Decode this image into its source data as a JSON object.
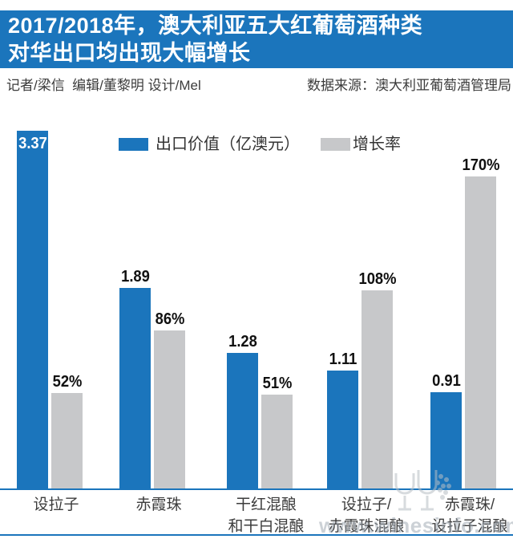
{
  "header": {
    "title_line1": "2017/2018年，澳大利亚五大红葡萄酒种类",
    "title_line2": "对华出口均出现大幅增长",
    "bg_color": "#1b75bc",
    "credits_left": "记者/梁信  编辑/董黎明 设计/Mel",
    "credits_right": "数据来源：澳大利亚葡萄酒管理局"
  },
  "watermark": {
    "text": "www.winesinfo.com",
    "logo": "wine-glasses-grapes-logo"
  },
  "chart_data": {
    "type": "bar",
    "title": "",
    "categories": [
      "设拉子",
      "赤霞珠",
      "干红混酿和干白混酿",
      "设拉子/赤霞珠混酿",
      "赤霞珠/设拉子混酿"
    ],
    "category_lines": [
      [
        "设拉子"
      ],
      [
        "赤霞珠"
      ],
      [
        "干红混酿",
        "和干白混酿"
      ],
      [
        "设拉子/",
        "赤霞珠混酿"
      ],
      [
        "赤霞珠/",
        "设拉子混酿"
      ]
    ],
    "series": [
      {
        "name": "出口价值（亿澳元）",
        "color": "#1b75bc",
        "values": [
          3.37,
          1.89,
          1.28,
          1.11,
          0.91
        ],
        "labels": [
          "3.37",
          "1.89",
          "1.28",
          "1.11",
          "0.91"
        ]
      },
      {
        "name": "增长率",
        "color": "#c7c8ca",
        "values": [
          52,
          86,
          51,
          108,
          170
        ],
        "labels": [
          "52%",
          "86%",
          "51%",
          "108%",
          "170%"
        ]
      }
    ],
    "legend_position": "top",
    "grid": false,
    "axis_color": "#1b75bc"
  }
}
